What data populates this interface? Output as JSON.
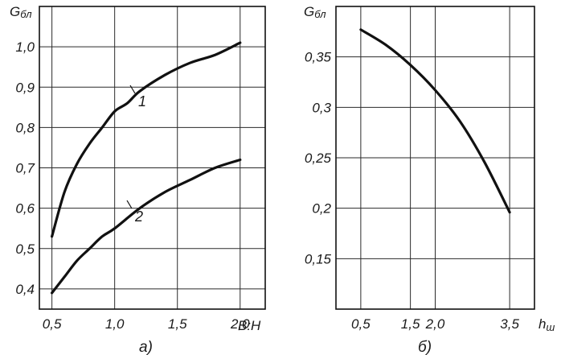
{
  "chart_data": [
    {
      "type": "line",
      "caption": "а)",
      "ylabel": "G",
      "ylabel_sub": "бл",
      "xlabel": "В:Н",
      "xlim": [
        0.4,
        2.2
      ],
      "ylim": [
        0.35,
        1.1
      ],
      "x_ticks": [
        0.5,
        1.0,
        1.5,
        2.0
      ],
      "x_tick_labels": [
        "0,5",
        "1,0",
        "1,5",
        "2,0"
      ],
      "y_ticks": [
        0.4,
        0.5,
        0.6,
        0.7,
        0.8,
        0.9,
        1.0
      ],
      "y_tick_labels": [
        "0,4",
        "0,5",
        "0,6",
        "0,7",
        "0,8",
        "0,9",
        "1,0"
      ],
      "grid": true,
      "series": [
        {
          "name": "1",
          "x": [
            0.5,
            0.6,
            0.7,
            0.8,
            0.9,
            1.0,
            1.1,
            1.2,
            1.4,
            1.6,
            1.8,
            2.0
          ],
          "y": [
            0.53,
            0.64,
            0.71,
            0.76,
            0.8,
            0.84,
            0.86,
            0.89,
            0.93,
            0.96,
            0.98,
            1.01
          ]
        },
        {
          "name": "2",
          "x": [
            0.5,
            0.6,
            0.7,
            0.8,
            0.9,
            1.0,
            1.2,
            1.4,
            1.6,
            1.8,
            2.0
          ],
          "y": [
            0.39,
            0.43,
            0.47,
            0.5,
            0.53,
            0.55,
            0.6,
            0.64,
            0.67,
            0.7,
            0.72
          ]
        }
      ]
    },
    {
      "type": "line",
      "caption": "б)",
      "ylabel": "G",
      "ylabel_sub": "бл",
      "xlabel": "h",
      "xlabel_sub": "ш",
      "xlim": [
        0.0,
        4.0
      ],
      "ylim": [
        0.1,
        0.4
      ],
      "x_ticks": [
        0.5,
        1.5,
        2.0,
        3.5
      ],
      "x_tick_labels": [
        "0,5",
        "1,5",
        "2,0",
        "3,5"
      ],
      "y_ticks": [
        0.15,
        0.2,
        0.25,
        0.3,
        0.35
      ],
      "y_tick_labels": [
        "0,15",
        "0,2",
        "0,25",
        "0,3",
        "0,35"
      ],
      "grid": true,
      "series": [
        {
          "name": "",
          "x": [
            0.5,
            1.0,
            1.5,
            2.0,
            2.5,
            3.0,
            3.5
          ],
          "y": [
            0.377,
            0.362,
            0.342,
            0.317,
            0.286,
            0.245,
            0.196
          ]
        }
      ]
    }
  ]
}
